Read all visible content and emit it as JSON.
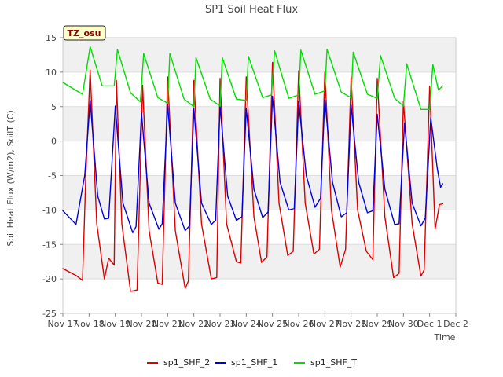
{
  "chart_data": {
    "type": "line",
    "title": "SP1 Soil Heat Flux",
    "xlabel": "Time",
    "ylabel": "Soil Heat Flux (W/m2), SoilT (C)",
    "badge": "TZ_osu",
    "xlim": [
      "Nov 17",
      "Dec 2"
    ],
    "ylim": [
      -25,
      15
    ],
    "x_ticks": [
      "Nov 17",
      "Nov 18",
      "Nov 19",
      "Nov 20",
      "Nov 21",
      "Nov 22",
      "Nov 23",
      "Nov 24",
      "Nov 25",
      "Nov 26",
      "Nov 27",
      "Nov 28",
      "Nov 29",
      "Nov 30",
      "Dec 1",
      "Dec 2"
    ],
    "y_ticks": [
      -25,
      -20,
      -15,
      -10,
      -5,
      0,
      5,
      10,
      15
    ],
    "grid": true,
    "legend_position": "bottom",
    "series": [
      {
        "name": "sp1_SHF_2",
        "color": "#dd0000",
        "x": [
          "Nov 17",
          "Nov 17 12:00",
          "Nov 17 18:00",
          "Nov 17 21:00",
          "Nov 18 01:00",
          "Nov 18 07:00",
          "Nov 18 14:00",
          "Nov 18 18:00",
          "Nov 18 23:00",
          "Nov 19 01:00",
          "Nov 19 06:00",
          "Nov 19 14:00",
          "Nov 19 20:00",
          "Nov 20 01:00",
          "Nov 20 07:00",
          "Nov 20 15:00",
          "Nov 20 19:00",
          "Nov 21 00:00",
          "Nov 21 07:00",
          "Nov 21 16:00",
          "Nov 21 19:00",
          "Nov 22 00:00",
          "Nov 22 07:00",
          "Nov 22 16:00",
          "Nov 22 21:00",
          "Nov 23 00:00",
          "Nov 23 06:00",
          "Nov 23 15:00",
          "Nov 23 19:00",
          "Nov 24 00:00",
          "Nov 24 07:00",
          "Nov 24 14:00",
          "Nov 24 19:00",
          "Nov 25 00:00",
          "Nov 25 06:00",
          "Nov 25 14:00",
          "Nov 25 19:00",
          "Nov 26 00:00",
          "Nov 26 06:00",
          "Nov 26 14:00",
          "Nov 26 19:00",
          "Nov 27 00:00",
          "Nov 27 06:00",
          "Nov 27 14:00",
          "Nov 27 19:00",
          "Nov 28 00:00",
          "Nov 28 06:00",
          "Nov 28 14:00",
          "Nov 28 20:00",
          "Nov 29 00:00",
          "Nov 29 07:00",
          "Nov 29 15:00",
          "Nov 29 20:00",
          "Nov 30 00:00",
          "Nov 30 08:00",
          "Nov 30 16:00",
          "Nov 30 19:00",
          "Dec 1 00:00",
          "Dec 1 05:00",
          "Dec 1 09:00",
          "Dec 1 12:00"
        ],
        "values": [
          -18.5,
          -19.5,
          -20.2,
          -5,
          10.3,
          -12,
          -20,
          -17,
          -18,
          8.8,
          -12,
          -21.8,
          -21.6,
          8.1,
          -13,
          -20.6,
          -20.8,
          9.3,
          -13,
          -21.4,
          -20.3,
          8.8,
          -12,
          -20,
          -19.8,
          9.1,
          -12,
          -17.5,
          -17.7,
          9.3,
          -11,
          -17.6,
          -16.8,
          11.4,
          -9,
          -16.6,
          -16.0,
          10.2,
          -9,
          -16.4,
          -15.7,
          10.0,
          -10,
          -18.3,
          -15.7,
          9.3,
          -10,
          -16,
          -17.2,
          9.1,
          -11,
          -19.8,
          -19.2,
          5.8,
          -12,
          -19.6,
          -18.7,
          8.0,
          -12.8,
          -9.2,
          -9.1
        ]
      },
      {
        "name": "sp1_SHF_1",
        "color": "#0000dd",
        "x": [
          "Nov 17",
          "Nov 17 12:00",
          "Nov 17 20:00",
          "Nov 18 01:00",
          "Nov 18 08:00",
          "Nov 18 14:00",
          "Nov 18 18:00",
          "Nov 19 00:00",
          "Nov 19 07:00",
          "Nov 19 16:00",
          "Nov 19 19:00",
          "Nov 20 00:00",
          "Nov 20 07:00",
          "Nov 20 16:00",
          "Nov 20 19:00",
          "Nov 21 00:00",
          "Nov 21 07:00",
          "Nov 21 16:00",
          "Nov 21 20:00",
          "Nov 22 00:00",
          "Nov 22 07:00",
          "Nov 22 16:00",
          "Nov 22 20:00",
          "Nov 23 00:00",
          "Nov 23 07:00",
          "Nov 23 15:00",
          "Nov 23 20:00",
          "Nov 24 00:00",
          "Nov 24 07:00",
          "Nov 24 15:00",
          "Nov 24 20:00",
          "Nov 25 00:00",
          "Nov 25 07:00",
          "Nov 25 15:00",
          "Nov 25 20:00",
          "Nov 26 00:00",
          "Nov 26 07:00",
          "Nov 26 15:00",
          "Nov 26 20:00",
          "Nov 27 00:00",
          "Nov 27 07:00",
          "Nov 27 15:00",
          "Nov 27 20:00",
          "Nov 28 00:00",
          "Nov 28 07:00",
          "Nov 28 15:00",
          "Nov 28 20:00",
          "Nov 29 00:00",
          "Nov 29 07:00",
          "Nov 29 16:00",
          "Nov 29 20:00",
          "Nov 30 01:00",
          "Nov 30 08:00",
          "Nov 30 16:00",
          "Nov 30 20:00",
          "Dec 1 01:00",
          "Dec 1 07:00",
          "Dec 1 10:00",
          "Dec 1 12:00"
        ],
        "values": [
          -10.1,
          -12.1,
          -5,
          5.9,
          -8,
          -11.3,
          -11.2,
          5.1,
          -9,
          -13.3,
          -12.4,
          4.1,
          -9,
          -12.8,
          -12.0,
          5.3,
          -9,
          -13.0,
          -12.3,
          4.7,
          -9,
          -12.1,
          -11.5,
          5.1,
          -8,
          -11.5,
          -11.0,
          4.8,
          -7,
          -11.1,
          -10.3,
          6.5,
          -6,
          -10.0,
          -9.8,
          5.7,
          -5,
          -9.6,
          -8.3,
          6.1,
          -6,
          -11.0,
          -10.4,
          5.2,
          -6,
          -10.4,
          -10.1,
          3.9,
          -7,
          -12.1,
          -12.0,
          2.6,
          -9,
          -12.3,
          -11.2,
          3.4,
          -4,
          -6.7,
          -6.2
        ]
      },
      {
        "name": "sp1_SHF_T",
        "color": "#00dd00",
        "x": [
          "Nov 17",
          "Nov 17 18:00",
          "Nov 18 01:00",
          "Nov 18 12:00",
          "Nov 18 23:00",
          "Nov 19 02:00",
          "Nov 19 14:00",
          "Nov 19 23:00",
          "Nov 20 02:00",
          "Nov 20 15:00",
          "Nov 21 00:00",
          "Nov 21 02:00",
          "Nov 21 15:00",
          "Nov 22 00:00",
          "Nov 22 02:00",
          "Nov 22 15:00",
          "Nov 23 00:00",
          "Nov 23 02:00",
          "Nov 23 15:00",
          "Nov 24 00:00",
          "Nov 24 02:00",
          "Nov 24 15:00",
          "Nov 24 23:00",
          "Nov 25 02:00",
          "Nov 25 15:00",
          "Nov 26 00:00",
          "Nov 26 02:00",
          "Nov 26 15:00",
          "Nov 27 00:00",
          "Nov 27 02:00",
          "Nov 27 15:00",
          "Nov 28 00:00",
          "Nov 28 02:00",
          "Nov 28 15:00",
          "Nov 29 00:00",
          "Nov 29 03:00",
          "Nov 29 16:00",
          "Nov 30 00:00",
          "Nov 30 03:00",
          "Nov 30 16:00",
          "Dec 1 00:00",
          "Dec 1 03:00",
          "Dec 1 08:00",
          "Dec 1 12:00"
        ],
        "values": [
          8.5,
          6.8,
          13.7,
          8.0,
          8.0,
          13.3,
          7.0,
          5.7,
          12.7,
          6.3,
          5.5,
          12.7,
          6.1,
          5.0,
          12.1,
          6.1,
          5.1,
          12.1,
          6.1,
          5.9,
          12.3,
          6.3,
          6.7,
          13.1,
          6.2,
          6.7,
          13.2,
          6.8,
          7.3,
          13.3,
          7.1,
          6.3,
          12.9,
          6.8,
          6.2,
          12.4,
          6.2,
          5.1,
          11.2,
          4.6,
          4.6,
          11.1,
          7.4,
          8.0
        ]
      }
    ]
  }
}
